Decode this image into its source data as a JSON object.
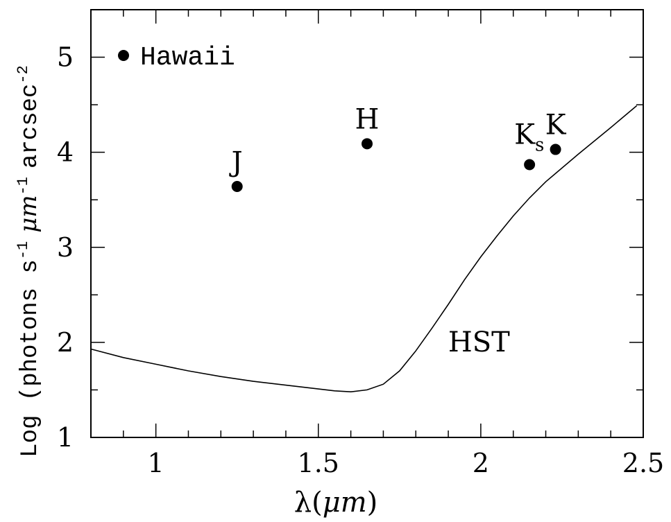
{
  "chart_data": {
    "type": "scatter",
    "xlabel_prefix": "λ(",
    "xlabel_unit": "μm",
    "xlabel_suffix": ")",
    "ylabel_prefix": "Log (photons s",
    "ylabel_exp1": "-1",
    "ylabel_unit": "μm",
    "ylabel_exp2": "-1",
    "ylabel_arcsec": "arcsec",
    "ylabel_exp3": "-2",
    "xlim": [
      0.8,
      2.5
    ],
    "ylim": [
      1,
      5.5
    ],
    "x_ticks": [
      1,
      1.5,
      2,
      2.5
    ],
    "x_tick_labels": [
      "1",
      "1.5",
      "2",
      "2.5"
    ],
    "y_ticks": [
      1,
      2,
      3,
      4,
      5
    ],
    "y_tick_labels": [
      "1",
      "2",
      "3",
      "4",
      "5"
    ],
    "legend": {
      "position": "top-left",
      "label": "Hawaii"
    },
    "series": [
      {
        "name": "Hawaii",
        "kind": "points",
        "points": [
          {
            "label": "J",
            "x": 1.25,
            "y": 3.64
          },
          {
            "label": "H",
            "x": 1.65,
            "y": 4.09
          },
          {
            "label": "K",
            "label_sub": "s",
            "x": 2.15,
            "y": 3.87
          },
          {
            "label": "K",
            "x": 2.23,
            "y": 4.03
          }
        ]
      },
      {
        "name": "HST",
        "kind": "line",
        "x": [
          0.8,
          0.9,
          1.0,
          1.1,
          1.2,
          1.3,
          1.4,
          1.5,
          1.55,
          1.6,
          1.65,
          1.7,
          1.75,
          1.8,
          1.85,
          1.9,
          1.95,
          2.0,
          2.05,
          2.1,
          2.15,
          2.2,
          2.3,
          2.4,
          2.48
        ],
        "y": [
          1.93,
          1.84,
          1.77,
          1.7,
          1.64,
          1.59,
          1.55,
          1.51,
          1.49,
          1.48,
          1.5,
          1.56,
          1.7,
          1.91,
          2.15,
          2.4,
          2.66,
          2.9,
          3.12,
          3.33,
          3.52,
          3.69,
          3.98,
          4.26,
          4.49
        ]
      }
    ]
  }
}
